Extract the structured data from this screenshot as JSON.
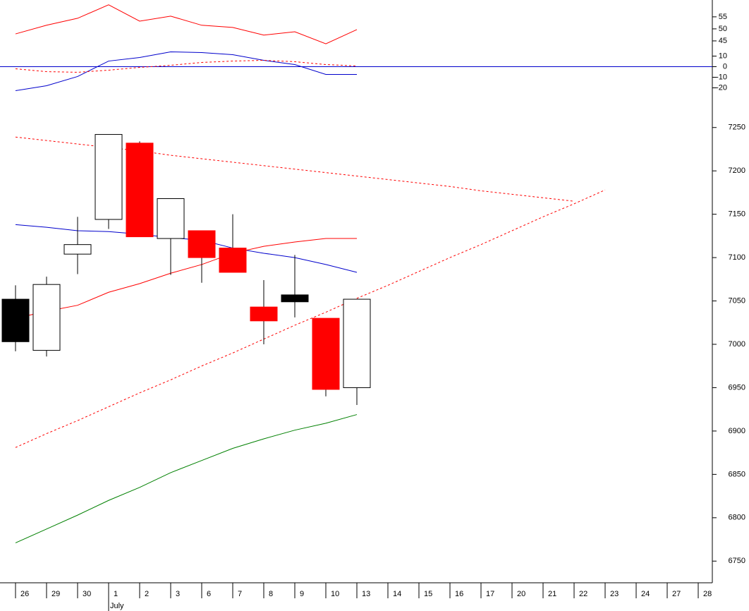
{
  "chart_data": [
    {
      "type": "line",
      "ylim": [
        -37,
        63
      ],
      "yticks": [
        -20,
        -10,
        0,
        10
      ],
      "y2lim": [
        18,
        62
      ],
      "y2ticks": [
        45,
        50,
        55
      ],
      "hlines": [
        {
          "value": 0,
          "color": "#0000cc"
        }
      ],
      "series": [
        {
          "color": "#ff0000",
          "axis": "y2",
          "dash": false,
          "values": [
            47.9,
            51.5,
            54.4,
            60,
            53.2,
            55.3,
            51.5,
            50.6,
            47.4,
            48.8,
            43.8,
            49.7,
            null,
            null,
            null,
            null,
            null,
            null,
            null,
            null,
            null,
            null,
            null
          ]
        },
        {
          "color": "#0000cc",
          "dash": false,
          "values": [
            -22.7,
            -18,
            -9.3,
            5.3,
            8.7,
            14,
            13.3,
            11.3,
            6,
            2,
            -7.3,
            -7.3,
            null,
            null,
            null,
            null,
            null,
            null,
            null,
            null,
            null,
            null,
            null
          ]
        },
        {
          "color": "#ff0000",
          "dash": true,
          "values": [
            -2,
            -4.7,
            -5.3,
            -3.3,
            -0.7,
            1.3,
            4,
            5.3,
            6,
            4.7,
            2,
            0.7,
            null,
            null,
            null,
            null,
            null,
            null,
            null,
            null,
            null,
            null,
            null
          ]
        }
      ]
    },
    {
      "type": "candlestick",
      "categories": [
        "26",
        "29",
        "30",
        "1",
        "2",
        "3",
        "6",
        "7",
        "8",
        "9",
        "10",
        "13",
        "14",
        "15",
        "16",
        "17",
        "20",
        "21",
        "22",
        "23",
        "24",
        "27",
        "28"
      ],
      "annotations": [
        {
          "text": "July",
          "category": 3
        }
      ],
      "ylim": [
        6725,
        7275
      ],
      "yticks": [
        6750,
        6800,
        6850,
        6900,
        6950,
        7000,
        7050,
        7100,
        7150,
        7200,
        7250
      ],
      "candles": {
        "open": [
          7003,
          6993,
          7104,
          7144,
          7232,
          7122,
          7131,
          7111,
          7043,
          7057,
          7030,
          6950,
          null,
          null,
          null,
          null,
          null,
          null,
          null,
          null,
          null,
          null,
          null
        ],
        "high": [
          7068,
          7078,
          7147,
          7242,
          7234,
          7168,
          7131,
          7150,
          7074,
          7103,
          7030,
          7052,
          null,
          null,
          null,
          null,
          null,
          null,
          null,
          null,
          null,
          null,
          null
        ],
        "low": [
          6992,
          6986,
          7081,
          7133,
          7124,
          7080,
          7071,
          7083,
          7000,
          7031,
          6940,
          6930,
          null,
          null,
          null,
          null,
          null,
          null,
          null,
          null,
          null,
          null,
          null
        ],
        "close": [
          7052,
          7069,
          7115,
          7242,
          7124,
          7168,
          7100,
          7083,
          7027,
          7049,
          6948,
          7052,
          null,
          null,
          null,
          null,
          null,
          null,
          null,
          null,
          null,
          null,
          null
        ],
        "colors": [
          "#000000",
          "#ffffff",
          "#ffffff",
          "#ffffff",
          "#ff0000",
          "#ffffff",
          "#ff0000",
          "#ff0000",
          "#ff0000",
          "#000000",
          "#ff0000",
          "#ffffff",
          null,
          null,
          null,
          null,
          null,
          null,
          null,
          null,
          null,
          null,
          null
        ]
      },
      "series": [
        {
          "color": "#0000cc",
          "dash": false,
          "values": [
            7138,
            7135,
            7131,
            7130,
            7127,
            7123,
            7120,
            7111,
            7105,
            7100,
            7092,
            7083,
            null,
            null,
            null,
            null,
            null,
            null,
            null,
            null,
            null,
            null,
            null
          ]
        },
        {
          "color": "#ff0000",
          "dash": false,
          "values": [
            7030,
            7038,
            7045,
            7060,
            7070,
            7082,
            7092,
            7105,
            7113,
            7118,
            7122,
            7122,
            null,
            null,
            null,
            null,
            null,
            null,
            null,
            null,
            null,
            null,
            null
          ]
        },
        {
          "color": "#008000",
          "dash": false,
          "values": [
            6771,
            6787,
            6803,
            6820,
            6835,
            6852,
            6866,
            6880,
            6891,
            6901,
            6909,
            6919,
            null,
            null,
            null,
            null,
            null,
            null,
            null,
            null,
            null,
            null,
            null
          ]
        },
        {
          "color": "#ff0000",
          "dash": true,
          "values": [
            7239,
            7235,
            7231,
            7227,
            7223,
            7218,
            7214,
            7210,
            7206,
            7202,
            7198,
            7194,
            7190,
            7186,
            7182,
            7177,
            7173,
            7169,
            7165,
            null,
            null,
            null,
            null
          ]
        },
        {
          "color": "#ff0000",
          "dash": true,
          "values": [
            6881,
            6897,
            6912,
            6928,
            6944,
            6959,
            6975,
            6990,
            7006,
            7022,
            7037,
            7053,
            7068,
            7084,
            7100,
            7115,
            7131,
            7147,
            7162,
            7178,
            null,
            null,
            null
          ]
        }
      ]
    }
  ]
}
